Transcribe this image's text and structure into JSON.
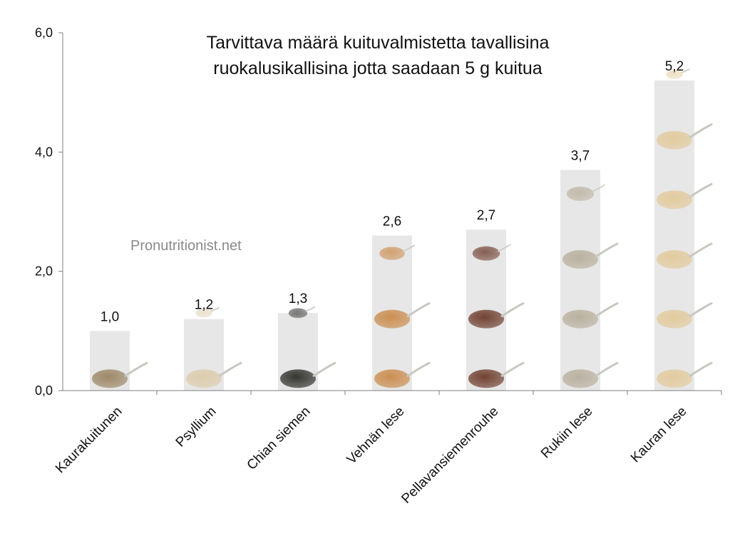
{
  "watermark": "Pronutritionist.net",
  "chart_data": {
    "type": "bar",
    "title_lines": [
      "Tarvittava määrä kuituvalmistetta tavallisina",
      "ruokalusikallisina jotta saadaan 5 g kuitua"
    ],
    "categories": [
      "Kaurakuitunen",
      "Psyllium",
      "Chian siemen",
      "Vehnän lese",
      "Pellavansiemenrouhe",
      "Rukiin lese",
      "Kauran lese"
    ],
    "values": [
      1.0,
      1.2,
      1.3,
      2.6,
      2.7,
      3.7,
      5.2
    ],
    "data_labels": [
      "1,0",
      "1,2",
      "1,3",
      "2,6",
      "2,7",
      "3,7",
      "5,2"
    ],
    "yticks": [
      0,
      2,
      4,
      6
    ],
    "ytick_labels": [
      "0,0",
      "2,0",
      "4,0",
      "6,0"
    ],
    "ylim": [
      0,
      6
    ],
    "grid": false,
    "legend": "none",
    "spoon_colors": [
      "#9a8462",
      "#dccbaa",
      "#2c2c28",
      "#c98a4a",
      "#6b3a2a",
      "#b7ae9c",
      "#e2c99a"
    ],
    "bar_color": "#e4e4e4"
  }
}
